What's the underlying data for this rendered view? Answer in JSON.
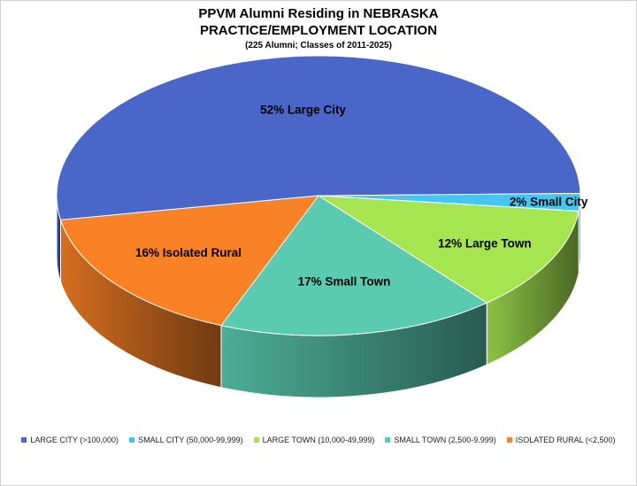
{
  "chart_data": {
    "type": "pie",
    "title": "PPVM Alumni Residing in NEBRASKA",
    "subtitle": "PRACTICE/EMPLOYMENT LOCATION",
    "note": "(225 Alumni; Classes of 2011-2025)",
    "slices": [
      {
        "legend": "LARGE CITY (>100,000)",
        "label": "52% Large City",
        "value": 52,
        "color": "#4A66C8"
      },
      {
        "legend": "SMALL CITY (50,000-99,999)",
        "label": "2% Small City",
        "value": 2,
        "color": "#45C6EE"
      },
      {
        "legend": "LARGE TOWN (10,000-49,999)",
        "label": "12% Large Town",
        "value": 12,
        "color": "#A5E550"
      },
      {
        "legend": "SMALL TOWN (2,500-9.999)",
        "label": "17% Small Town",
        "value": 17,
        "color": "#5ACBB1"
      },
      {
        "legend": "ISOLATED RURAL (<2,500)",
        "label": "16% Isolated Rural",
        "value": 16,
        "color": "#F98126"
      }
    ],
    "legend_position": "bottom"
  }
}
